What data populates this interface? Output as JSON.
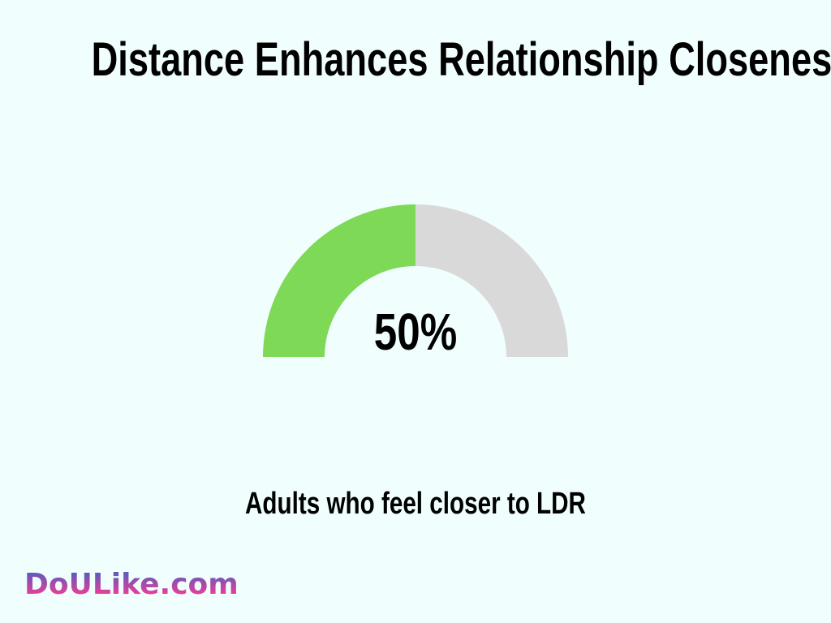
{
  "chart_data": {
    "type": "gauge",
    "title": "Distance Enhances Relationship Closeness",
    "value": 50,
    "max": 100,
    "value_label": "50%",
    "caption": "Adults who feel closer to LDR",
    "colors": {
      "fill": "#7ED957",
      "remainder": "#D9D9D9"
    }
  },
  "logo": "DoULike.com"
}
